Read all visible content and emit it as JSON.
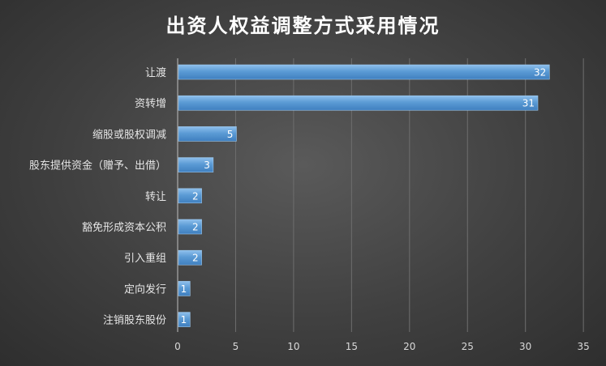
{
  "chart_data": {
    "type": "bar",
    "orientation": "horizontal",
    "title": "出资人权益调整方式采用情况",
    "xlabel": "",
    "ylabel": "",
    "categories": [
      "让渡",
      "资转增",
      "缩股或股权调减",
      "股东提供资金（赠予、出借）",
      "转让",
      "豁免形成资本公积",
      "引入重组",
      "定向发行",
      "注销股东股份"
    ],
    "values": [
      32,
      31,
      5,
      3,
      2,
      2,
      2,
      1,
      1
    ],
    "xlim": [
      0,
      35
    ],
    "xticks": [
      "0",
      "5",
      "10",
      "15",
      "20",
      "25",
      "30",
      "35"
    ],
    "grid": "vertical",
    "data_labels": true,
    "bar_color": "#5b9bd5"
  }
}
